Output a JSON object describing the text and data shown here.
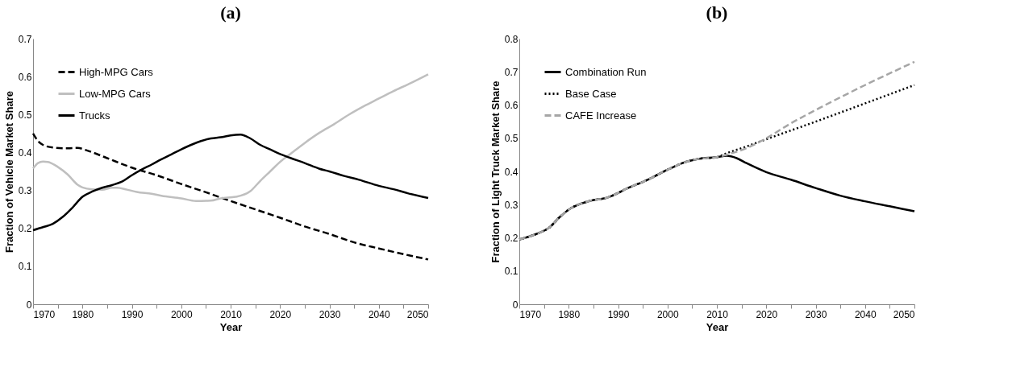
{
  "chart_data": [
    {
      "type": "line",
      "title": "(a)",
      "xlabel": "Year",
      "ylabel": "Fraction of Vehicle Market Share",
      "xlim": [
        1970,
        2050
      ],
      "xticks": [
        1970,
        {
          "value": 1975,
          "label": null
        },
        1980,
        {
          "value": 1985,
          "label": null
        },
        1990,
        {
          "value": 1995,
          "label": null
        },
        2000,
        {
          "value": 2005,
          "label": null
        },
        2010,
        {
          "value": 2015,
          "label": null
        },
        2020,
        {
          "value": 2025,
          "label": null
        },
        2030,
        {
          "value": 2035,
          "label": null
        },
        2040,
        {
          "value": 2045,
          "label": null
        },
        2050
      ],
      "ylim": [
        0,
        0.7
      ],
      "yticks": [
        0,
        0.1,
        0.2,
        0.3,
        0.4,
        0.5,
        0.6,
        0.7
      ],
      "grid": false,
      "legend": "top left",
      "series": [
        {
          "name": "High-MPG Cars",
          "color": "#000000",
          "line_style": "dashed",
          "x": [
            1970,
            1971,
            1972,
            1974,
            1977,
            1979,
            1981,
            1985,
            1990,
            1995,
            2000,
            2005,
            2010,
            2015,
            2020,
            2025,
            2030,
            2035,
            2040,
            2045,
            2050
          ],
          "values": [
            0.45,
            0.43,
            0.42,
            0.413,
            0.411,
            0.412,
            0.405,
            0.385,
            0.36,
            0.34,
            0.317,
            0.295,
            0.272,
            0.25,
            0.228,
            0.205,
            0.185,
            0.163,
            0.147,
            0.132,
            0.118
          ]
        },
        {
          "name": "Low-MPG Cars",
          "color": "#bfbfbf",
          "line_style": "solid",
          "x": [
            1970,
            1971,
            1972,
            1973,
            1975,
            1977,
            1979,
            1980,
            1982,
            1984,
            1986,
            1987,
            1989,
            1991,
            1994,
            1996,
            2000,
            2003,
            2006,
            2008,
            2011,
            2014,
            2016,
            2018,
            2020,
            2022,
            2025,
            2028,
            2031,
            2034,
            2037,
            2040,
            2043,
            2046,
            2050
          ],
          "values": [
            0.358,
            0.372,
            0.376,
            0.375,
            0.362,
            0.342,
            0.315,
            0.308,
            0.303,
            0.302,
            0.307,
            0.307,
            0.302,
            0.296,
            0.291,
            0.286,
            0.279,
            0.272,
            0.273,
            0.279,
            0.283,
            0.298,
            0.325,
            0.35,
            0.375,
            0.395,
            0.425,
            0.452,
            0.475,
            0.5,
            0.522,
            0.542,
            0.562,
            0.58,
            0.606
          ]
        },
        {
          "name": "Trucks",
          "color": "#000000",
          "line_style": "solid",
          "x": [
            1970,
            1972,
            1974,
            1976,
            1978,
            1980,
            1982,
            1984,
            1986,
            1988,
            1990,
            1992,
            1994,
            1996,
            1998,
            2000,
            2002,
            2004,
            2006,
            2008,
            2010,
            2012,
            2014,
            2016,
            2018,
            2020,
            2022,
            2025,
            2028,
            2030,
            2033,
            2036,
            2040,
            2043,
            2046,
            2050
          ],
          "values": [
            0.195,
            0.203,
            0.212,
            0.23,
            0.255,
            0.283,
            0.297,
            0.307,
            0.314,
            0.323,
            0.34,
            0.355,
            0.368,
            0.382,
            0.395,
            0.408,
            0.42,
            0.43,
            0.437,
            0.44,
            0.445,
            0.447,
            0.437,
            0.42,
            0.408,
            0.396,
            0.386,
            0.372,
            0.357,
            0.35,
            0.338,
            0.328,
            0.312,
            0.303,
            0.292,
            0.28
          ]
        }
      ]
    },
    {
      "type": "line",
      "title": "(b)",
      "xlabel": "Year",
      "ylabel": "Fraction of Light Truck Market Share",
      "xlim": [
        1970,
        2050
      ],
      "xticks": [
        1970,
        {
          "value": 1975,
          "label": null
        },
        1980,
        {
          "value": 1985,
          "label": null
        },
        1990,
        {
          "value": 1995,
          "label": null
        },
        2000,
        {
          "value": 2005,
          "label": null
        },
        2010,
        {
          "value": 2015,
          "label": null
        },
        2020,
        {
          "value": 2025,
          "label": null
        },
        2030,
        {
          "value": 2035,
          "label": null
        },
        2040,
        {
          "value": 2045,
          "label": null
        },
        2050
      ],
      "ylim": [
        0,
        0.8
      ],
      "yticks": [
        0,
        0.1,
        0.2,
        0.3,
        0.4,
        0.5,
        0.6,
        0.7,
        0.8
      ],
      "grid": false,
      "legend": "top left",
      "series": [
        {
          "name": "Combination Run",
          "color": "#000000",
          "line_style": "solid",
          "x": [
            1970,
            1974,
            1976,
            1978,
            1980,
            1984,
            1988,
            1992,
            1996,
            2000,
            2004,
            2006,
            2010,
            2012,
            2014,
            2016,
            2020,
            2025,
            2030,
            2035,
            2040,
            2045,
            2050
          ],
          "values": [
            0.195,
            0.215,
            0.23,
            0.26,
            0.285,
            0.31,
            0.322,
            0.35,
            0.375,
            0.405,
            0.43,
            0.437,
            0.443,
            0.447,
            0.44,
            0.425,
            0.398,
            0.375,
            0.35,
            0.327,
            0.31,
            0.295,
            0.28
          ]
        },
        {
          "name": "Base Case",
          "color": "#000000",
          "line_style": "dotted",
          "x": [
            1970,
            1974,
            1976,
            1978,
            1980,
            1984,
            1988,
            1992,
            1996,
            2000,
            2004,
            2006,
            2010,
            2012,
            2015,
            2020,
            2030,
            2040,
            2050
          ],
          "values": [
            0.195,
            0.215,
            0.23,
            0.26,
            0.285,
            0.31,
            0.322,
            0.35,
            0.375,
            0.405,
            0.43,
            0.437,
            0.443,
            0.455,
            0.47,
            0.497,
            0.55,
            0.605,
            0.66
          ]
        },
        {
          "name": "CAFE Increase",
          "color": "#a6a6a6",
          "line_style": "dashed",
          "x": [
            1970,
            1974,
            1976,
            1978,
            1980,
            1984,
            1988,
            1992,
            1996,
            2000,
            2004,
            2006,
            2010,
            2013,
            2016,
            2020,
            2025,
            2030,
            2040,
            2050
          ],
          "values": [
            0.195,
            0.215,
            0.23,
            0.26,
            0.285,
            0.31,
            0.322,
            0.35,
            0.375,
            0.405,
            0.43,
            0.437,
            0.443,
            0.455,
            0.47,
            0.5,
            0.545,
            0.585,
            0.66,
            0.73
          ]
        }
      ]
    }
  ]
}
